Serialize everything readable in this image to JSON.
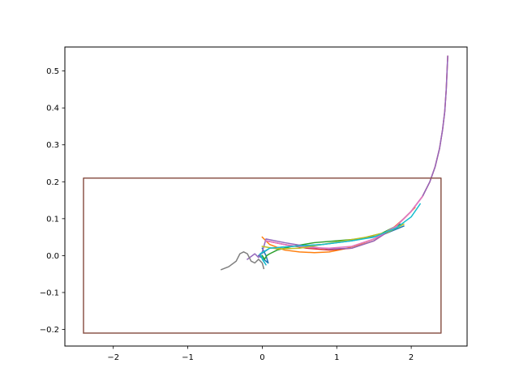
{
  "chart_data": {
    "type": "line",
    "title": "",
    "xlabel": "",
    "ylabel": "",
    "xlim": [
      -2.65,
      2.75
    ],
    "ylim": [
      -0.245,
      0.565
    ],
    "grid": false,
    "legend": "none",
    "x_ticks": [
      -2,
      -1,
      0,
      1,
      2
    ],
    "x_tick_labels": [
      "−2",
      "−1",
      "0",
      "1",
      "2"
    ],
    "y_ticks": [
      -0.2,
      -0.1,
      0.0,
      0.1,
      0.2,
      0.3,
      0.4,
      0.5
    ],
    "y_tick_labels": [
      "−0.2",
      "−0.1",
      "0.0",
      "0.1",
      "0.2",
      "0.3",
      "0.4",
      "0.5"
    ],
    "series": [
      {
        "color": "#1f77b4",
        "x": [
          0.0,
          0.05,
          0.08,
          0.02,
          -0.05,
          0.1,
          0.4,
          0.8,
          1.2,
          1.6,
          1.9
        ],
        "y": [
          0.02,
          0.0,
          -0.02,
          -0.01,
          0.0,
          0.02,
          0.025,
          0.03,
          0.04,
          0.055,
          0.08
        ]
      },
      {
        "color": "#ff7f0e",
        "x": [
          0.0,
          0.1,
          0.3,
          0.5,
          0.7,
          0.9,
          1.1,
          1.3,
          1.5,
          1.7,
          1.9,
          2.05
        ],
        "y": [
          0.05,
          0.03,
          0.015,
          0.01,
          0.008,
          0.01,
          0.018,
          0.03,
          0.045,
          0.065,
          0.1,
          0.13
        ]
      },
      {
        "color": "#2ca02c",
        "x": [
          0.0,
          0.03,
          0.06,
          0.1,
          0.2,
          0.4,
          0.7,
          1.0,
          1.3,
          1.6,
          1.85
        ],
        "y": [
          0.0,
          -0.01,
          0.0,
          0.005,
          0.015,
          0.025,
          0.035,
          0.04,
          0.045,
          0.06,
          0.085
        ]
      },
      {
        "color": "#d62728",
        "x": [
          0.05,
          0.3,
          0.6,
          0.9,
          1.2,
          1.5,
          1.8,
          2.0,
          2.15,
          2.25,
          2.32,
          2.38,
          2.42,
          2.45,
          2.47,
          2.49
        ],
        "y": [
          0.04,
          0.03,
          0.02,
          0.015,
          0.02,
          0.04,
          0.08,
          0.12,
          0.16,
          0.2,
          0.24,
          0.29,
          0.34,
          0.39,
          0.45,
          0.54
        ]
      },
      {
        "color": "#9467bd",
        "x": [
          -0.2,
          -0.1,
          -0.05,
          0.0,
          0.05,
          0.3,
          0.6,
          0.9,
          1.2,
          1.5,
          1.8,
          2.0,
          2.15,
          2.25,
          2.32,
          2.38,
          2.42,
          2.45,
          2.47,
          2.49
        ],
        "y": [
          -0.01,
          0.005,
          -0.005,
          0.01,
          0.045,
          0.035,
          0.025,
          0.018,
          0.02,
          0.04,
          0.08,
          0.12,
          0.16,
          0.2,
          0.24,
          0.29,
          0.34,
          0.39,
          0.45,
          0.54
        ]
      },
      {
        "color": "#8c564b",
        "x": [
          -2.4,
          2.4,
          2.4,
          -2.4,
          -2.4
        ],
        "y": [
          -0.21,
          -0.21,
          0.21,
          0.21,
          -0.21
        ]
      },
      {
        "color": "#e377c2",
        "x": [
          0.05,
          0.3,
          0.6,
          0.9,
          1.2,
          1.5,
          1.8,
          2.0,
          2.15
        ],
        "y": [
          0.04,
          0.03,
          0.022,
          0.02,
          0.025,
          0.045,
          0.08,
          0.12,
          0.16
        ]
      },
      {
        "color": "#7f7f7f",
        "x": [
          -0.55,
          -0.45,
          -0.35,
          -0.3,
          -0.25,
          -0.2,
          -0.15,
          -0.1,
          -0.05,
          0.0,
          0.02
        ],
        "y": [
          -0.038,
          -0.03,
          -0.015,
          0.005,
          0.01,
          0.005,
          -0.015,
          -0.02,
          -0.01,
          -0.02,
          -0.035
        ]
      },
      {
        "color": "#bcbd22",
        "x": [
          0.0,
          0.2,
          0.5,
          0.8,
          1.1,
          1.4,
          1.7,
          1.9
        ],
        "y": [
          0.025,
          0.018,
          0.02,
          0.03,
          0.04,
          0.05,
          0.065,
          0.085
        ]
      },
      {
        "color": "#17becf",
        "x": [
          0.0,
          0.05,
          0.02,
          -0.03,
          0.1,
          0.4,
          0.8,
          1.2,
          1.5,
          1.8,
          2.0,
          2.12
        ],
        "y": [
          -0.01,
          -0.025,
          -0.015,
          0.005,
          0.02,
          0.025,
          0.03,
          0.04,
          0.05,
          0.075,
          0.105,
          0.14
        ]
      }
    ]
  }
}
